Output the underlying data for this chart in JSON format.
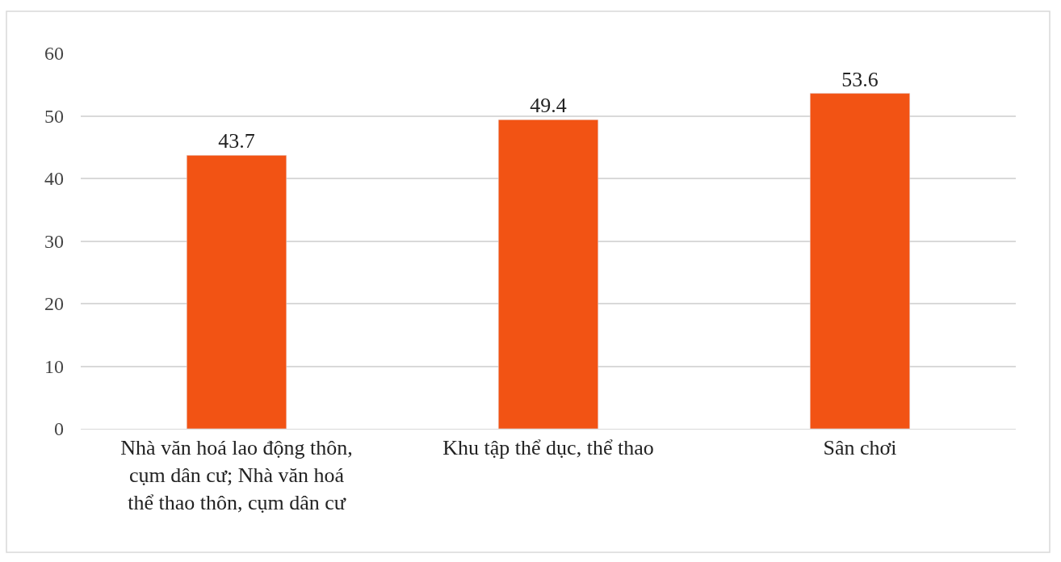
{
  "chart_data": {
    "type": "bar",
    "categories": [
      "Nhà văn hoá lao động thôn, cụm dân cư; Nhà văn hoá thể thao thôn, cụm dân cư",
      "Khu tập thể dục, thể thao",
      "Sân chơi"
    ],
    "values": [
      43.7,
      49.4,
      53.6
    ],
    "color": "#f25314",
    "ylim": [
      0,
      60
    ],
    "yticks": [
      0,
      10,
      20,
      30,
      40,
      50,
      60
    ],
    "grid": "y",
    "data_labels": true,
    "legend": false
  }
}
